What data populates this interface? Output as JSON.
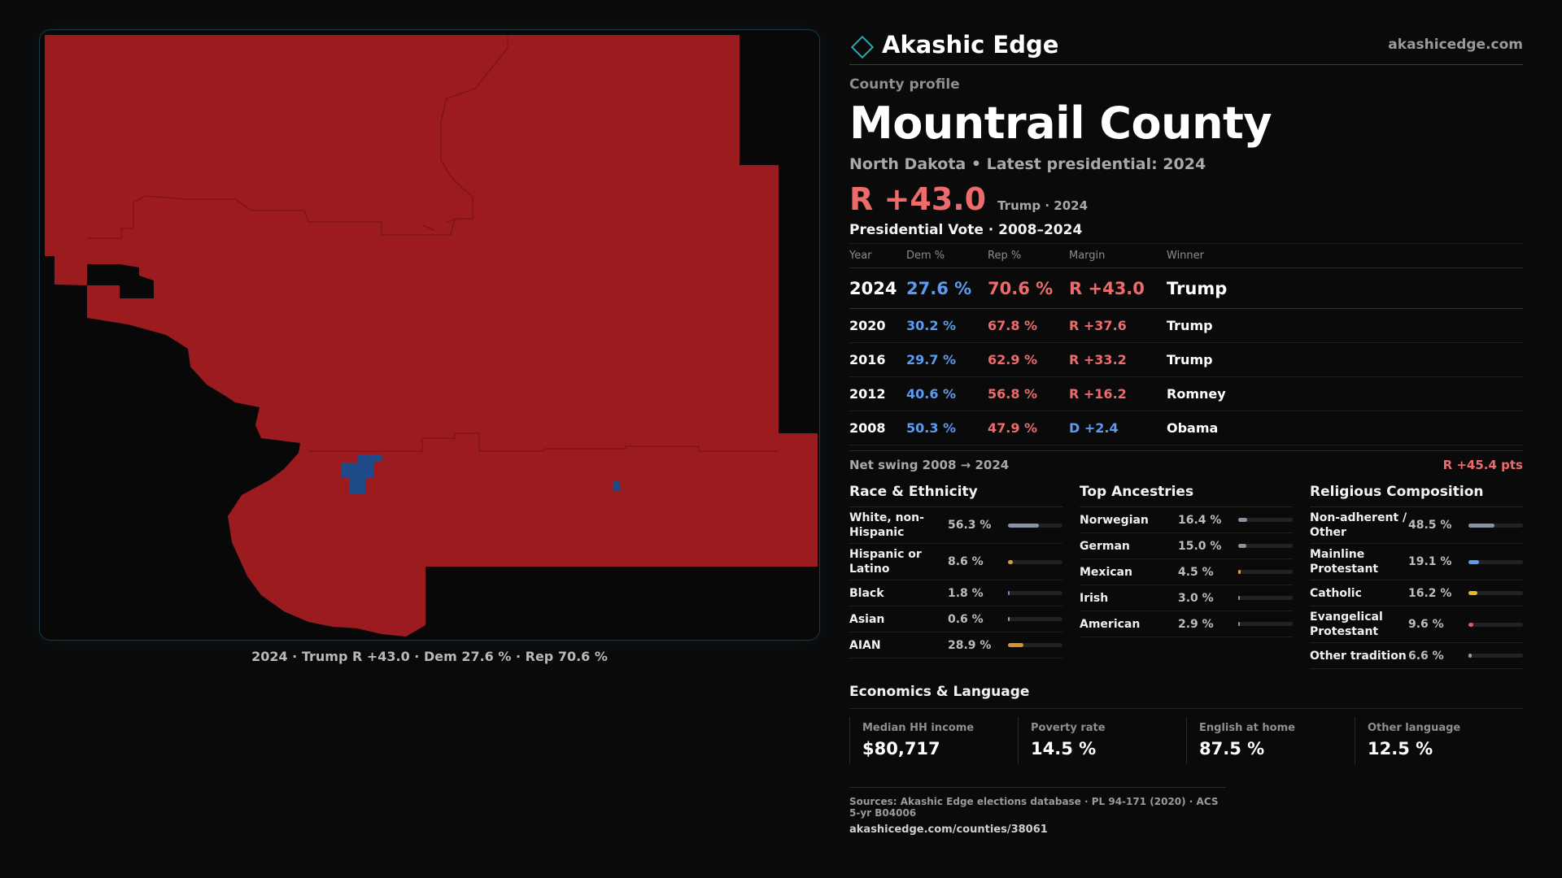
{
  "brand": {
    "name": "Akashic Edge",
    "url": "akashicedge.com"
  },
  "profile": {
    "eyebrow": "County profile",
    "title": "Mountrail County",
    "subtitle": "North Dakota • Latest presidential: 2024",
    "margin": "R +43.0",
    "margin_note": "Trump · 2024"
  },
  "map": {
    "caption": "2024 · Trump R +43.0 · Dem 27.6 % · Rep 70.6 %",
    "colors": {
      "rep": "#9b1b1f",
      "dem": "#1f4a8a",
      "background": "#080808"
    }
  },
  "votes": {
    "title": "Presidential Vote · 2008–2024",
    "headers": {
      "year": "Year",
      "dem": "Dem %",
      "rep": "Rep %",
      "margin": "Margin",
      "winner": "Winner"
    },
    "rows": [
      {
        "year": "2024",
        "dem": "27.6 %",
        "rep": "70.6 %",
        "margin": "R +43.0",
        "winner": "Trump"
      },
      {
        "year": "2020",
        "dem": "30.2 %",
        "rep": "67.8 %",
        "margin": "R +37.6",
        "winner": "Trump"
      },
      {
        "year": "2016",
        "dem": "29.7 %",
        "rep": "62.9 %",
        "margin": "R +33.2",
        "winner": "Trump"
      },
      {
        "year": "2012",
        "dem": "40.6 %",
        "rep": "56.8 %",
        "margin": "R +16.2",
        "winner": "Romney"
      },
      {
        "year": "2008",
        "dem": "50.3 %",
        "rep": "47.9 %",
        "margin": "D +2.4",
        "winner": "Obama"
      }
    ],
    "swing_label": "Net swing 2008 → 2024",
    "swing_value": "R +45.4 pts"
  },
  "race": {
    "title": "Race & Ethnicity",
    "items": [
      {
        "label": "White, non-Hispanic",
        "value": "56.3 %",
        "level": 0.563,
        "color": "#8a93a3"
      },
      {
        "label": "Hispanic or Latino",
        "value": "8.6 %",
        "level": 0.086,
        "color": "#d9a030"
      },
      {
        "label": "Black",
        "value": "1.8 %",
        "level": 0.018,
        "color": "#8a7ad8"
      },
      {
        "label": "Asian",
        "value": "0.6 %",
        "level": 0.006,
        "color": "#9aa5b5"
      },
      {
        "label": "AIAN",
        "value": "28.9 %",
        "level": 0.289,
        "color": "#d9922a"
      }
    ]
  },
  "ancestry": {
    "title": "Top Ancestries",
    "items": [
      {
        "label": "Norwegian",
        "value": "16.4 %",
        "level": 0.164,
        "color": "#8a93a3"
      },
      {
        "label": "German",
        "value": "15.0 %",
        "level": 0.15,
        "color": "#8a93a3"
      },
      {
        "label": "Mexican",
        "value": "4.5 %",
        "level": 0.045,
        "color": "#d9a030"
      },
      {
        "label": "Irish",
        "value": "3.0 %",
        "level": 0.03,
        "color": "#8a93a3"
      },
      {
        "label": "American",
        "value": "2.9 %",
        "level": 0.029,
        "color": "#8a93a3"
      }
    ]
  },
  "religion": {
    "title": "Religious Composition",
    "items": [
      {
        "label": "Non-adherent / Other",
        "value": "48.5 %",
        "level": 0.485,
        "color": "#8a93a3"
      },
      {
        "label": "Mainline Protestant",
        "value": "19.1 %",
        "level": 0.191,
        "color": "#5b9bf0"
      },
      {
        "label": "Catholic",
        "value": "16.2 %",
        "level": 0.162,
        "color": "#e8b62a"
      },
      {
        "label": "Evangelical Protestant",
        "value": "9.6 %",
        "level": 0.096,
        "color": "#e05a64"
      },
      {
        "label": "Other tradition",
        "value": "6.6 %",
        "level": 0.066,
        "color": "#9a9a9a"
      }
    ]
  },
  "economics": {
    "title": "Economics & Language",
    "items": [
      {
        "label": "Median HH income",
        "value": "$80,717"
      },
      {
        "label": "Poverty rate",
        "value": "14.5 %"
      },
      {
        "label": "English at home",
        "value": "87.5 %"
      },
      {
        "label": "Other language",
        "value": "12.5 %"
      }
    ]
  },
  "sources": {
    "line": "Sources: Akashic Edge elections database · PL 94-171 (2020) · ACS 5-yr B04006",
    "url": "akashicedge.com/counties/38061"
  }
}
